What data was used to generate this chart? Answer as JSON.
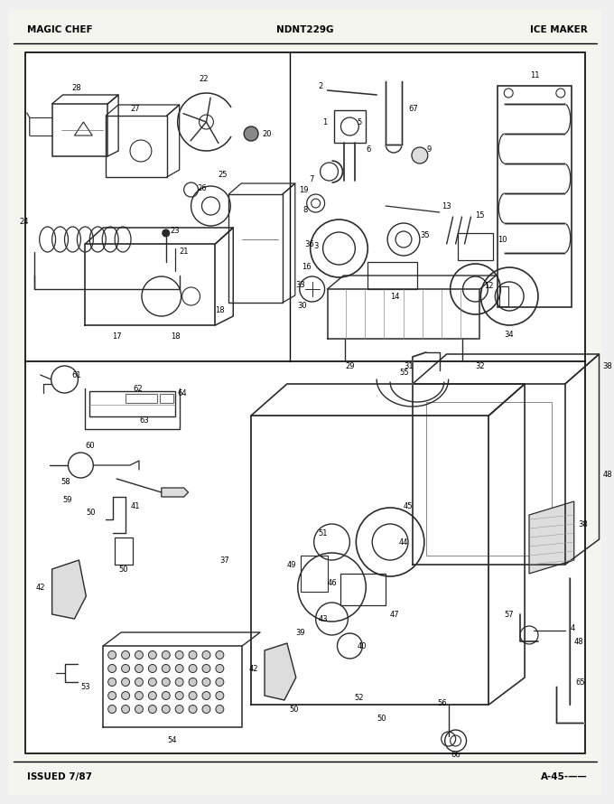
{
  "title_left": "MAGIC CHEF",
  "title_center": "NDNT229G",
  "title_right": "ICE MAKER",
  "footer_left": "ISSUED 7/87",
  "footer_right": "A-45-——",
  "bg_color": "#f0f0f0",
  "paper_color": "#f5f5f0",
  "border_color": "#000000",
  "text_color": "#000000",
  "draw_color": "#2a2a2a",
  "title_fontsize": 7.5,
  "footer_fontsize": 7.5,
  "label_fontsize": 6.0
}
